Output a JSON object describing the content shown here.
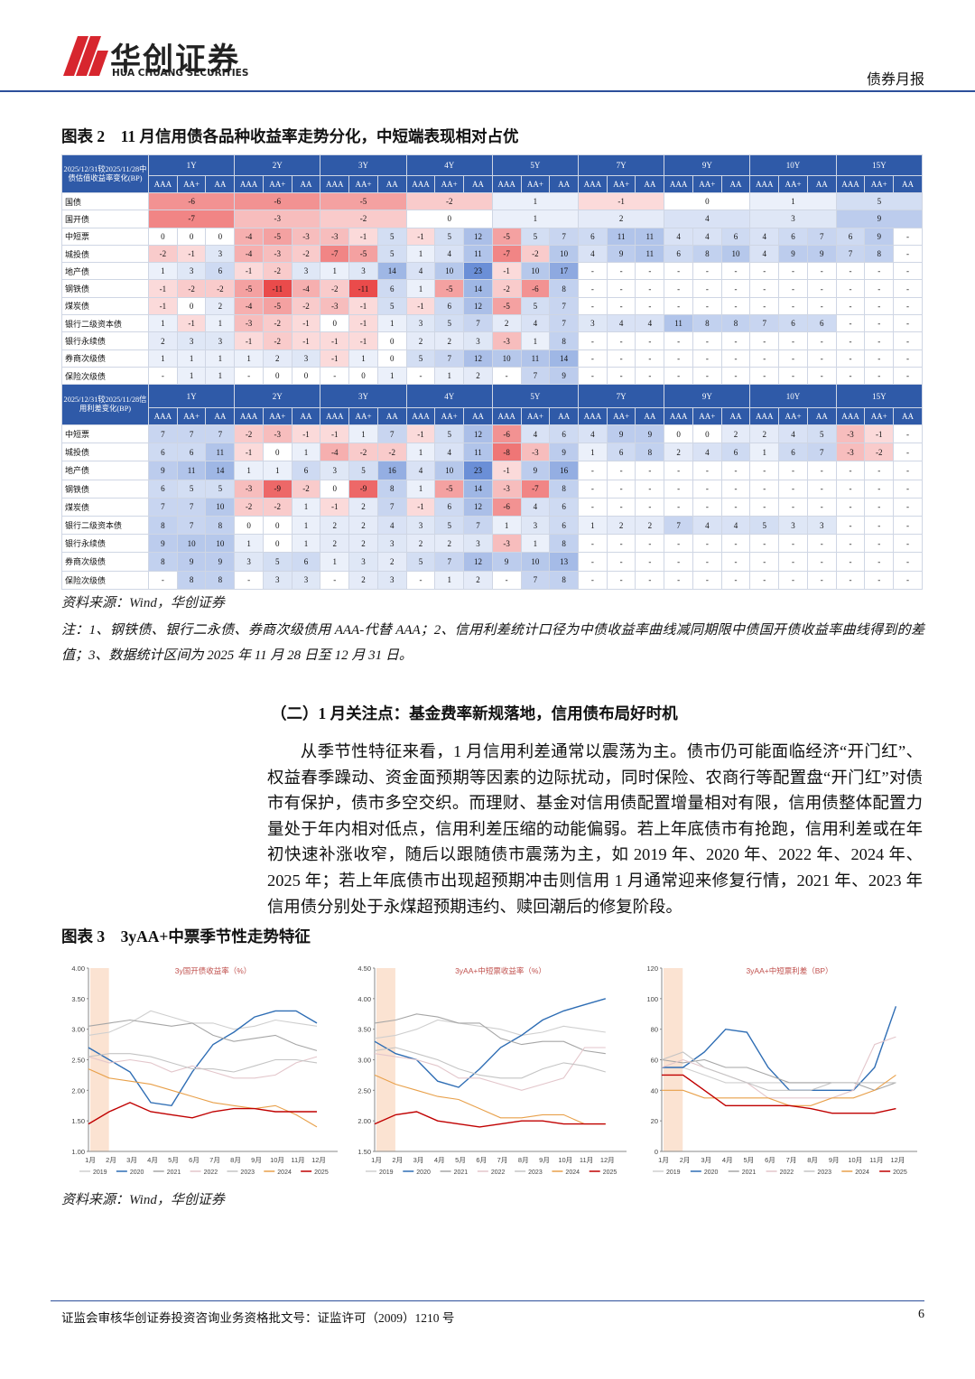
{
  "header": {
    "brand": "华创证券",
    "brand_en": "HUA CHUANG SECURITIES",
    "doc_type": "债券月报"
  },
  "figure2_title": "图表 2　11 月信用债各品种收益率走势分化，中短端表现相对占优",
  "table_columns": {
    "tenors": [
      "1Y",
      "2Y",
      "3Y",
      "4Y",
      "5Y",
      "7Y",
      "9Y",
      "10Y",
      "15Y"
    ],
    "grades": [
      "AAA",
      "AA+",
      "AA"
    ]
  },
  "table1": {
    "header": "2025/12/31较2025/11/28中债估值收益率变化(BP)",
    "rows": [
      {
        "label": "国债",
        "cells": [
          -6,
          -6,
          -5,
          -2,
          1,
          -1,
          0,
          1,
          5
        ]
      },
      {
        "label": "国开债",
        "cells": [
          -7,
          -3,
          -2,
          0,
          1,
          2,
          4,
          3,
          9
        ]
      },
      {
        "label": "中短票",
        "cells": [
          0,
          0,
          0,
          -4,
          -5,
          -3,
          -3,
          -1,
          5,
          -1,
          5,
          12,
          -5,
          5,
          7,
          6,
          11,
          11,
          4,
          4,
          6,
          4,
          6,
          7,
          6,
          9,
          "-"
        ]
      },
      {
        "label": "城投债",
        "cells": [
          -2,
          -1,
          3,
          -4,
          -3,
          -2,
          -7,
          -5,
          5,
          1,
          4,
          11,
          -7,
          -2,
          10,
          4,
          9,
          11,
          6,
          8,
          10,
          4,
          9,
          9,
          7,
          8,
          "-"
        ]
      },
      {
        "label": "地产债",
        "cells": [
          1,
          3,
          6,
          -1,
          -2,
          3,
          1,
          3,
          14,
          4,
          10,
          23,
          -1,
          10,
          17,
          "-",
          "-",
          "-",
          "-",
          "-",
          "-",
          "-",
          "-",
          "-",
          "-",
          "-",
          "-"
        ]
      },
      {
        "label": "钢铁债",
        "cells": [
          -1,
          -2,
          -2,
          -5,
          -11,
          -4,
          -2,
          -11,
          6,
          1,
          -5,
          14,
          -2,
          -6,
          8,
          "-",
          "-",
          "-",
          "-",
          "-",
          "-",
          "-",
          "-",
          "-",
          "-",
          "-",
          "-"
        ]
      },
      {
        "label": "煤炭债",
        "cells": [
          -1,
          0,
          2,
          -4,
          -5,
          -2,
          -3,
          -1,
          5,
          -1,
          6,
          12,
          -5,
          5,
          7,
          "-",
          "-",
          "-",
          "-",
          "-",
          "-",
          "-",
          "-",
          "-",
          "-",
          "-",
          "-"
        ]
      },
      {
        "label": "银行二级资本债",
        "cells": [
          1,
          -1,
          1,
          -3,
          -2,
          -1,
          0,
          -1,
          1,
          3,
          5,
          7,
          2,
          4,
          7,
          3,
          4,
          4,
          11,
          8,
          8,
          7,
          6,
          6,
          "-",
          "-",
          "-"
        ]
      },
      {
        "label": "银行永续债",
        "cells": [
          2,
          3,
          3,
          -1,
          -2,
          -1,
          -1,
          -1,
          0,
          2,
          2,
          3,
          -3,
          1,
          8,
          "-",
          "-",
          "-",
          "-",
          "-",
          "-",
          "-",
          "-",
          "-",
          "-",
          "-",
          "-"
        ]
      },
      {
        "label": "券商次级债",
        "cells": [
          1,
          1,
          1,
          1,
          2,
          3,
          -1,
          1,
          0,
          5,
          7,
          12,
          10,
          11,
          14,
          "-",
          "-",
          "-",
          "-",
          "-",
          "-",
          "-",
          "-",
          "-",
          "-",
          "-",
          "-"
        ]
      },
      {
        "label": "保险次级债",
        "cells": [
          "-",
          1,
          1,
          "-",
          0,
          0,
          "-",
          0,
          1,
          "-",
          1,
          2,
          "-",
          7,
          9,
          "-",
          "-",
          "-",
          "-",
          "-",
          "-",
          "-",
          "-",
          "-",
          "-",
          "-",
          "-"
        ]
      }
    ]
  },
  "table2": {
    "header": "2025/12/31较2025/11/28信用利差变化(BP)",
    "rows": [
      {
        "label": "中短票",
        "cells": [
          7,
          7,
          7,
          -2,
          -3,
          -1,
          -1,
          1,
          7,
          -1,
          5,
          12,
          -6,
          4,
          6,
          4,
          9,
          9,
          0,
          0,
          2,
          2,
          4,
          5,
          -3,
          -1,
          "-"
        ]
      },
      {
        "label": "城投债",
        "cells": [
          6,
          6,
          11,
          -1,
          0,
          1,
          -4,
          -2,
          -2,
          1,
          4,
          11,
          -8,
          -3,
          9,
          1,
          6,
          8,
          2,
          4,
          6,
          1,
          6,
          7,
          -3,
          -2,
          "-"
        ]
      },
      {
        "label": "地产债",
        "cells": [
          9,
          11,
          14,
          1,
          1,
          6,
          3,
          5,
          16,
          4,
          10,
          23,
          -1,
          9,
          16,
          "-",
          "-",
          "-",
          "-",
          "-",
          "-",
          "-",
          "-",
          "-",
          "-",
          "-",
          "-"
        ]
      },
      {
        "label": "钢铁债",
        "cells": [
          6,
          5,
          5,
          -3,
          -9,
          -2,
          0,
          -9,
          8,
          1,
          -5,
          14,
          -3,
          -7,
          8,
          "-",
          "-",
          "-",
          "-",
          "-",
          "-",
          "-",
          "-",
          "-",
          "-",
          "-",
          "-"
        ]
      },
      {
        "label": "煤炭债",
        "cells": [
          7,
          7,
          10,
          -2,
          -2,
          1,
          -1,
          2,
          7,
          -1,
          6,
          12,
          -6,
          4,
          6,
          "-",
          "-",
          "-",
          "-",
          "-",
          "-",
          "-",
          "-",
          "-",
          "-",
          "-",
          "-"
        ]
      },
      {
        "label": "银行二级资本债",
        "cells": [
          8,
          7,
          8,
          0,
          0,
          1,
          2,
          2,
          4,
          3,
          5,
          7,
          1,
          3,
          6,
          1,
          2,
          2,
          7,
          4,
          4,
          5,
          3,
          3,
          "-",
          "-",
          "-"
        ]
      },
      {
        "label": "银行永续债",
        "cells": [
          9,
          10,
          10,
          1,
          0,
          1,
          2,
          2,
          3,
          2,
          2,
          3,
          -3,
          1,
          8,
          "-",
          "-",
          "-",
          "-",
          "-",
          "-",
          "-",
          "-",
          "-",
          "-",
          "-",
          "-"
        ]
      },
      {
        "label": "券商次级债",
        "cells": [
          8,
          9,
          9,
          3,
          5,
          6,
          1,
          3,
          2,
          5,
          7,
          12,
          9,
          10,
          13,
          "-",
          "-",
          "-",
          "-",
          "-",
          "-",
          "-",
          "-",
          "-",
          "-",
          "-",
          "-"
        ]
      },
      {
        "label": "保险次级债",
        "cells": [
          "-",
          8,
          8,
          "-",
          3,
          3,
          "-",
          2,
          3,
          "-",
          1,
          2,
          "-",
          7,
          8,
          "-",
          "-",
          "-",
          "-",
          "-",
          "-",
          "-",
          "-",
          "-",
          "-",
          "-",
          "-"
        ]
      }
    ]
  },
  "source1": "资料来源：Wind，华创证券",
  "note": "注：1、钢铁债、银行二永债、券商次级债用 AAA-代替 AAA；2、信用利差统计口径为中债收益率曲线减同期限中债国开债收益率曲线得到的差值；3、数据统计区间为 2025 年 11 月 28 日至 12 月 31 日。",
  "section_heading": "（二）1 月关注点：基金费率新规落地，信用债布局好时机",
  "paragraph": "从季节性特征来看，1 月信用利差通常以震荡为主。债市仍可能面临经济“开门红”、权益春季躁动、资金面预期等因素的边际扰动，同时保险、农商行等配置盘“开门红”对债市有保护，债市多空交织。而理财、基金对信用债配置增量相对有限，信用债整体配置力量处于年内相对低点，信用利差压缩的动能偏弱。若上年底债市有抢跑，信用利差或在年初快速补涨收窄，随后以跟随债市震荡为主，如 2019 年、2020 年、2022 年、2024 年、2025 年；若上年底债市出现超预期冲击则信用 1 月通常迎来修复行情，2021 年、2023 年信用债分别处于永煤超预期违约、赎回潮后的修复阶段。",
  "figure3_title": "图表 3　3yAA+中票季节性走势特征",
  "chart_data": [
    {
      "type": "line",
      "title": "3y国开债收益率（%）",
      "categories": [
        "1月",
        "2月",
        "3月",
        "4月",
        "5月",
        "6月",
        "7月",
        "8月",
        "9月",
        "10月",
        "11月",
        "12月"
      ],
      "ylim": [
        1,
        4
      ],
      "yticks": [
        {
          "value": 1,
          "label": "1.00"
        },
        {
          "value": 1.5,
          "label": "1.50"
        },
        {
          "value": 2,
          "label": "2.00"
        },
        {
          "value": 2.5,
          "label": "2.50"
        },
        {
          "value": 3,
          "label": "3.00"
        },
        {
          "value": 3.5,
          "label": "3.50"
        },
        {
          "value": 4,
          "label": "4.00"
        }
      ],
      "series": [
        {
          "name": "2019",
          "color": "#cfcfcf",
          "values": [
            2.9,
            2.95,
            3.1,
            3.3,
            3.2,
            3.1,
            3.1,
            3.0,
            3.05,
            3.15,
            3.1,
            3.05
          ]
        },
        {
          "name": "2020",
          "color": "#2e6db4",
          "values": [
            2.7,
            2.5,
            2.3,
            1.8,
            1.75,
            2.3,
            2.75,
            2.95,
            3.2,
            3.3,
            3.3,
            3.1
          ]
        },
        {
          "name": "2021",
          "color": "#a6a6a6",
          "values": [
            3.05,
            3.1,
            3.15,
            3.1,
            3.05,
            3.1,
            2.9,
            2.8,
            2.85,
            2.9,
            2.75,
            2.65
          ]
        },
        {
          "name": "2022",
          "color": "#e3c6cb",
          "values": [
            2.55,
            2.45,
            2.5,
            2.45,
            2.3,
            2.4,
            2.3,
            2.2,
            2.2,
            2.25,
            2.45,
            2.55
          ]
        },
        {
          "name": "2023",
          "color": "#c4c4c4",
          "values": [
            2.55,
            2.6,
            2.6,
            2.55,
            2.45,
            2.35,
            2.35,
            2.3,
            2.4,
            2.5,
            2.5,
            2.45
          ]
        },
        {
          "name": "2024",
          "color": "#e8a04a",
          "values": [
            2.35,
            2.2,
            2.15,
            2.1,
            2.0,
            1.9,
            1.8,
            1.75,
            1.7,
            1.75,
            1.6,
            1.4
          ]
        },
        {
          "name": "2025",
          "color": "#c00000",
          "values": [
            1.45,
            1.65,
            1.8,
            1.65,
            1.6,
            1.55,
            1.65,
            1.7,
            1.7,
            1.65,
            1.65,
            1.65
          ]
        }
      ]
    },
    {
      "type": "line",
      "title": "3yAA+中短票收益率（%）",
      "categories": [
        "1月",
        "2月",
        "3月",
        "4月",
        "5月",
        "6月",
        "7月",
        "8月",
        "9月",
        "10月",
        "11月",
        "12月"
      ],
      "ylim": [
        1.5,
        4.5
      ],
      "yticks": [
        {
          "value": 1.5,
          "label": "1.50"
        },
        {
          "value": 2,
          "label": "2.00"
        },
        {
          "value": 2.5,
          "label": "2.50"
        },
        {
          "value": 3,
          "label": "3.00"
        },
        {
          "value": 3.5,
          "label": "3.50"
        },
        {
          "value": 4,
          "label": "4.00"
        },
        {
          "value": 4.5,
          "label": "4.50"
        }
      ],
      "series": [
        {
          "name": "2019",
          "color": "#cfcfcf",
          "values": [
            3.35,
            3.4,
            3.5,
            3.65,
            3.6,
            3.55,
            3.5,
            3.4,
            3.45,
            3.55,
            3.5,
            3.45
          ]
        },
        {
          "name": "2020",
          "color": "#2e6db4",
          "values": [
            3.3,
            3.1,
            3.0,
            2.65,
            2.55,
            2.85,
            3.2,
            3.4,
            3.65,
            3.8,
            3.9,
            4.0
          ]
        },
        {
          "name": "2021",
          "color": "#a6a6a6",
          "values": [
            3.6,
            3.65,
            3.75,
            3.7,
            3.6,
            3.6,
            3.35,
            3.25,
            3.3,
            3.3,
            3.15,
            3.1
          ]
        },
        {
          "name": "2022",
          "color": "#e3c6cb",
          "values": [
            3.1,
            3.05,
            3.0,
            2.9,
            2.7,
            2.7,
            2.6,
            2.5,
            2.6,
            2.7,
            3.2,
            3.2
          ]
        },
        {
          "name": "2023",
          "color": "#c4c4c4",
          "values": [
            3.15,
            3.2,
            3.1,
            3.0,
            2.85,
            2.75,
            2.7,
            2.7,
            2.85,
            2.95,
            2.9,
            2.8
          ]
        },
        {
          "name": "2024",
          "color": "#e8a04a",
          "values": [
            2.75,
            2.6,
            2.5,
            2.4,
            2.35,
            2.2,
            2.05,
            2.05,
            2.1,
            2.1,
            1.95,
            1.95
          ]
        },
        {
          "name": "2025",
          "color": "#c00000",
          "values": [
            1.95,
            2.1,
            2.15,
            2.0,
            1.95,
            1.9,
            1.95,
            2.0,
            2.0,
            1.95,
            1.95,
            1.95
          ]
        }
      ]
    },
    {
      "type": "line",
      "title": "3yAA+中短票利差（BP）",
      "categories": [
        "1月",
        "2月",
        "3月",
        "4月",
        "5月",
        "6月",
        "7月",
        "8月",
        "9月",
        "10月",
        "11月",
        "12月"
      ],
      "ylim": [
        0,
        120
      ],
      "yticks": [
        0,
        20,
        40,
        60,
        80,
        100,
        120
      ],
      "series": [
        {
          "name": "2019",
          "color": "#cfcfcf",
          "values": [
            55,
            55,
            50,
            45,
            45,
            45,
            45,
            45,
            45,
            45,
            45,
            45
          ]
        },
        {
          "name": "2020",
          "color": "#2e6db4",
          "values": [
            55,
            55,
            65,
            80,
            78,
            55,
            40,
            40,
            40,
            40,
            55,
            95
          ]
        },
        {
          "name": "2021",
          "color": "#a6a6a6",
          "values": [
            60,
            58,
            60,
            55,
            55,
            50,
            45,
            45,
            45,
            45,
            40,
            45
          ]
        },
        {
          "name": "2022",
          "color": "#e3c6cb",
          "values": [
            55,
            60,
            55,
            50,
            45,
            35,
            35,
            35,
            35,
            40,
            70,
            75
          ]
        },
        {
          "name": "2023",
          "color": "#c4c4c4",
          "values": [
            60,
            65,
            55,
            50,
            45,
            40,
            40,
            40,
            45,
            45,
            45,
            45
          ]
        },
        {
          "name": "2024",
          "color": "#e8a04a",
          "values": [
            40,
            40,
            35,
            35,
            35,
            35,
            30,
            30,
            35,
            35,
            40,
            50
          ]
        },
        {
          "name": "2025",
          "color": "#c00000",
          "values": [
            50,
            50,
            40,
            30,
            30,
            30,
            30,
            28,
            25,
            25,
            25,
            28
          ]
        }
      ]
    }
  ],
  "source2": "资料来源：Wind，华创证券",
  "footer": {
    "text": "证监会审核华创证券投资咨询业务资格批文号：证监许可（2009）1210 号",
    "page": 6
  }
}
